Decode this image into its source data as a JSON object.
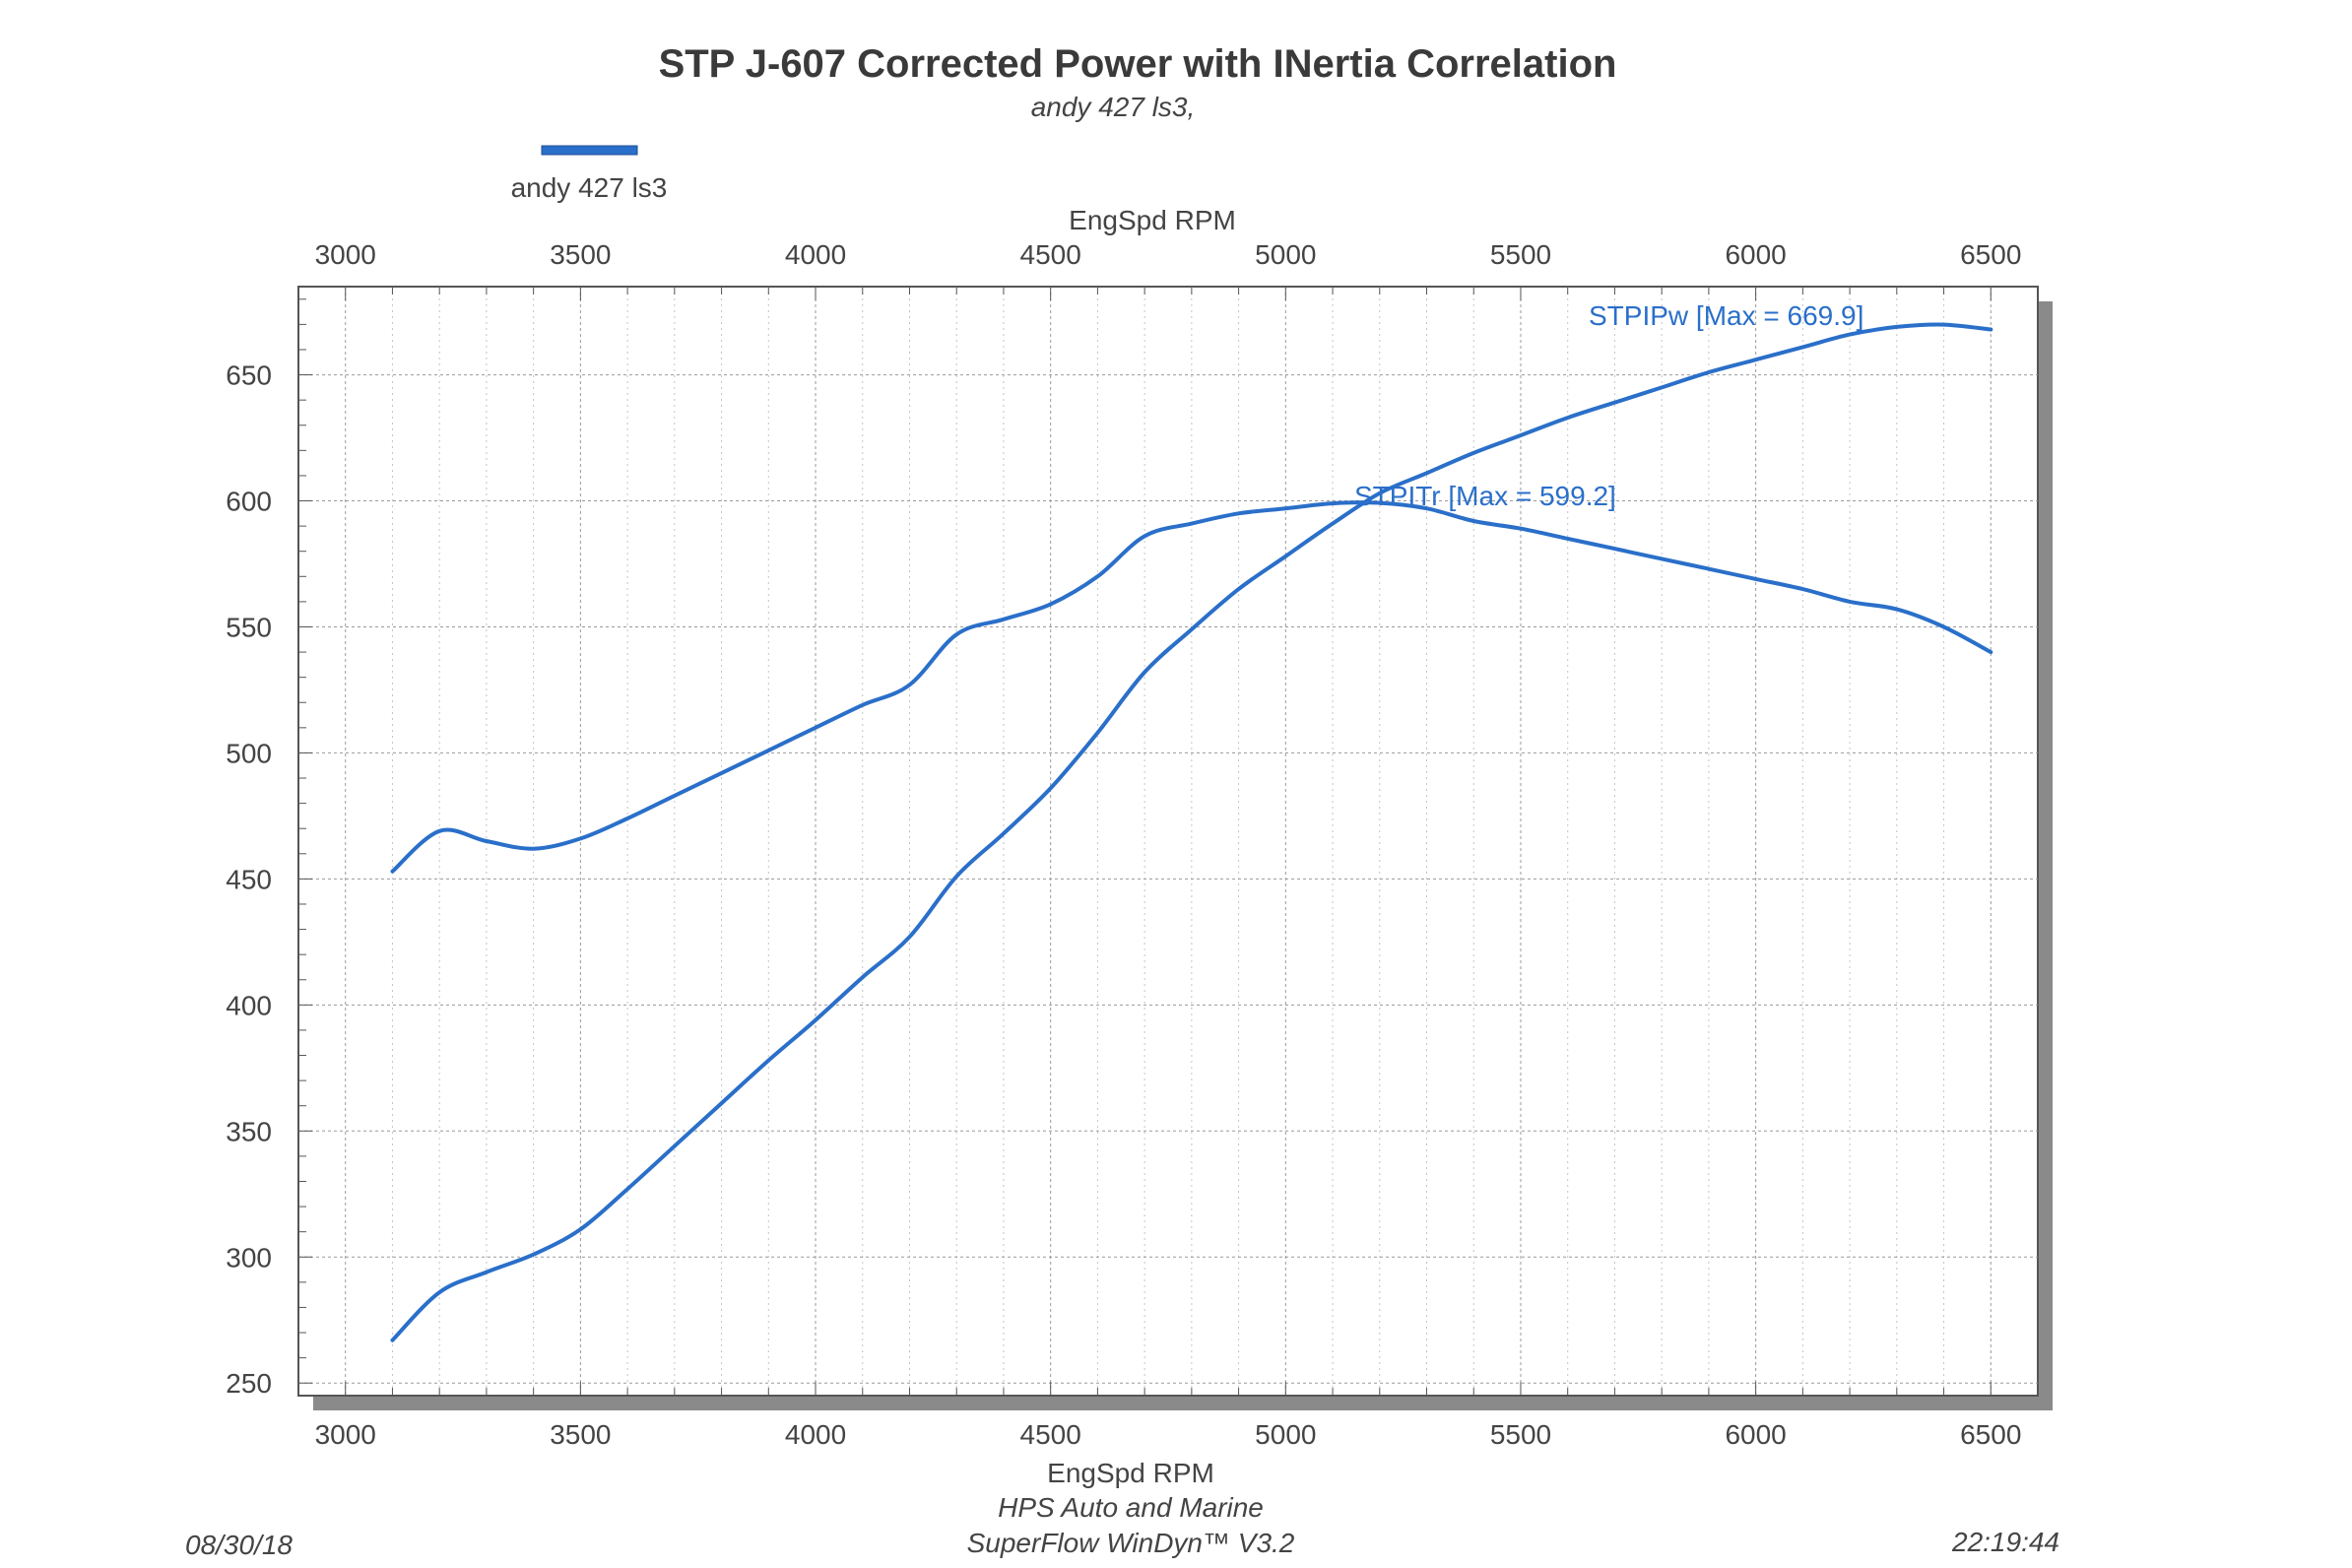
{
  "chart_data": {
    "type": "line",
    "title": "STP J-607 Corrected Power with INertia Correlation",
    "subtitle": "andy 427 ls3,",
    "legend": {
      "label": "andy 427 ls3",
      "color": "#2a6fc9",
      "placement": "top-left"
    },
    "xlabel": "EngSpd RPM",
    "xlim": [
      2900,
      6600
    ],
    "ylim": [
      245,
      685
    ],
    "x_ticks": [
      3000,
      3500,
      4000,
      4500,
      5000,
      5500,
      6000,
      6500
    ],
    "y_ticks": [
      250,
      300,
      350,
      400,
      450,
      500,
      550,
      600,
      650
    ],
    "grid": true,
    "series": [
      {
        "name": "STPIPw",
        "annotation": "STPIPw [Max = 669.9]",
        "color": "#2a6fc9",
        "x": [
          3100,
          3200,
          3300,
          3400,
          3500,
          3600,
          3700,
          3800,
          3900,
          4000,
          4100,
          4200,
          4300,
          4400,
          4500,
          4600,
          4700,
          4800,
          4900,
          5000,
          5100,
          5200,
          5300,
          5400,
          5500,
          5600,
          5700,
          5800,
          5900,
          6000,
          6100,
          6200,
          6300,
          6400,
          6500
        ],
        "y": [
          267,
          286,
          294,
          301,
          311,
          327,
          344,
          361,
          378,
          394,
          411,
          427,
          451,
          468,
          486,
          508,
          532,
          549,
          565,
          578,
          591,
          603,
          611,
          619,
          626,
          633,
          639,
          645,
          651,
          656,
          661,
          666,
          669,
          669.9,
          668
        ]
      },
      {
        "name": "STPITr",
        "annotation": "STPITr [Max = 599.2]",
        "color": "#2a6fc9",
        "x": [
          3100,
          3200,
          3300,
          3400,
          3500,
          3600,
          3700,
          3800,
          3900,
          4000,
          4100,
          4200,
          4300,
          4400,
          4500,
          4600,
          4700,
          4800,
          4900,
          5000,
          5100,
          5200,
          5300,
          5400,
          5500,
          5600,
          5700,
          5800,
          5900,
          6000,
          6100,
          6200,
          6300,
          6400,
          6500
        ],
        "y": [
          453,
          469,
          465,
          462,
          466,
          474,
          483,
          492,
          501,
          510,
          519,
          527,
          547,
          553,
          559,
          570,
          586,
          591,
          595,
          597,
          599,
          599.2,
          597,
          592,
          589,
          585,
          581,
          577,
          573,
          569,
          565,
          560,
          557,
          550,
          540
        ]
      }
    ]
  },
  "footer": {
    "date": "08/30/18",
    "company": "HPS Auto and Marine",
    "software": "SuperFlow WinDyn™ V3.2",
    "time": "22:19:44"
  }
}
